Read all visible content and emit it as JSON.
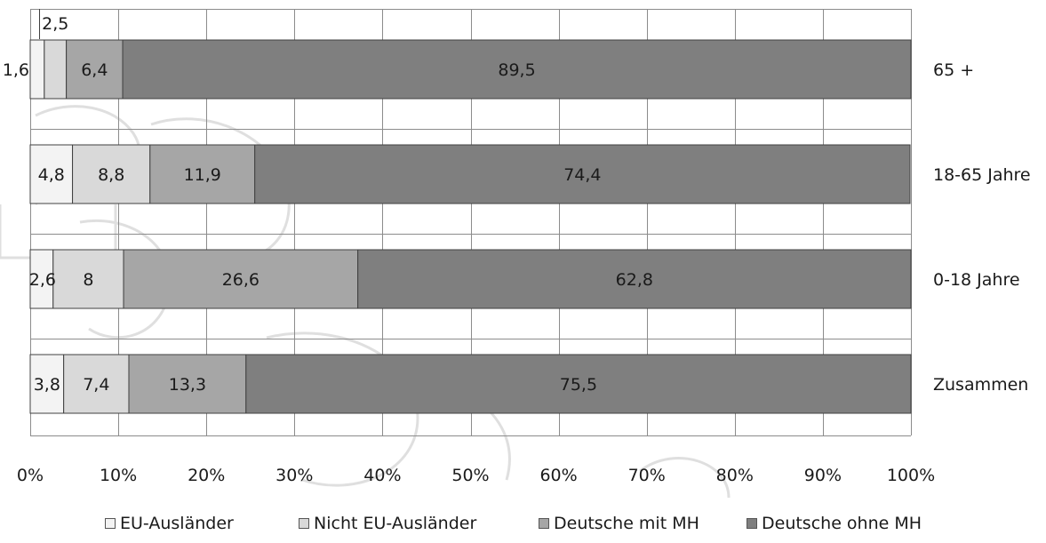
{
  "chart_data": {
    "type": "bar",
    "orientation": "horizontal",
    "stacked": true,
    "categories": [
      "65 +",
      "18-65 Jahre",
      "0-18 Jahre",
      "Zusammen"
    ],
    "series": [
      {
        "name": "EU-Ausländer",
        "values": [
          1.6,
          4.8,
          2.6,
          3.8
        ],
        "labels": [
          "1,6",
          "4,8",
          "2,6",
          "3,8"
        ],
        "color": "#f3f3f3"
      },
      {
        "name": "Nicht EU-Ausländer",
        "values": [
          2.5,
          8.8,
          8,
          7.4
        ],
        "labels": [
          "2,5",
          "8,8",
          "8",
          "7,4"
        ],
        "color": "#d9d9d9"
      },
      {
        "name": "Deutsche mit MH",
        "values": [
          6.4,
          11.9,
          26.6,
          13.3
        ],
        "labels": [
          "6,4",
          "11,9",
          "26,6",
          "13,3"
        ],
        "color": "#a6a6a6"
      },
      {
        "name": "Deutsche ohne MH",
        "values": [
          89.5,
          74.4,
          62.8,
          75.5
        ],
        "labels": [
          "89,5",
          "74,4",
          "62,8",
          "75,5"
        ],
        "color": "#7f7f7f"
      }
    ],
    "x_ticks": [
      "0%",
      "10%",
      "20%",
      "30%",
      "40%",
      "50%",
      "60%",
      "70%",
      "80%",
      "90%",
      "100%"
    ],
    "xlim": [
      0,
      100
    ],
    "grid": true,
    "legend_position": "bottom",
    "title": "",
    "xlabel": "",
    "ylabel": ""
  }
}
